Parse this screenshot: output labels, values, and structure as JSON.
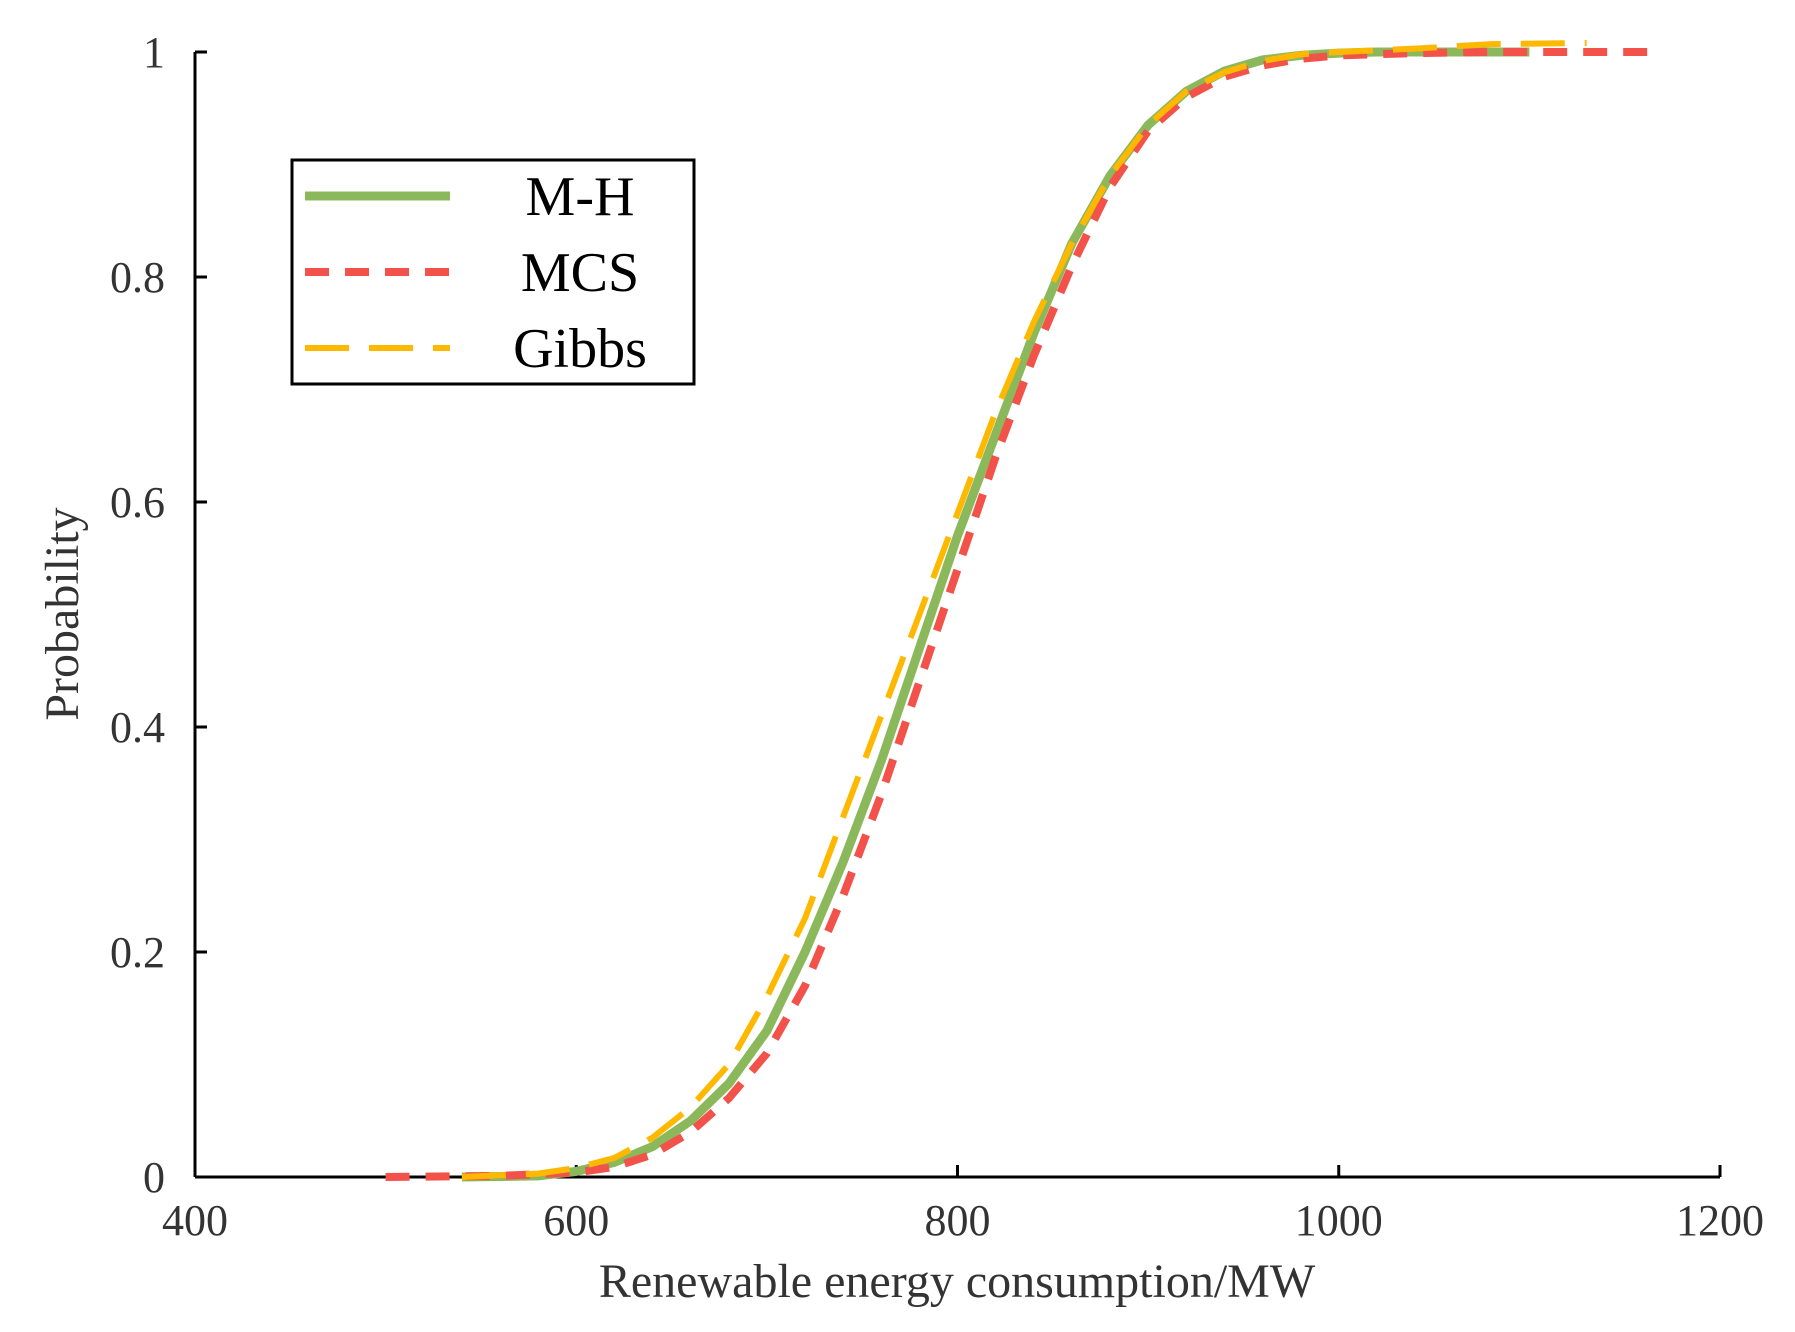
{
  "chart_data": {
    "type": "line",
    "title": "",
    "xlabel": "Renewable energy consumption/MW",
    "ylabel": "Probability",
    "xlim": [
      400,
      1200
    ],
    "ylim": [
      0,
      1
    ],
    "xticks": [
      400,
      600,
      800,
      1000,
      1200
    ],
    "yticks": [
      0,
      0.2,
      0.4,
      0.6,
      0.8,
      1
    ],
    "xtick_labels": [
      "400",
      "600",
      "800",
      "1000",
      "1200"
    ],
    "ytick_labels": [
      "0",
      "0.2",
      "0.4",
      "0.6",
      "0.8",
      "1"
    ],
    "grid": false,
    "legend_position": "upper-left",
    "series": [
      {
        "name": "M-H",
        "color": "#8cb85c",
        "style": "solid",
        "x": [
          540,
          580,
          600,
          620,
          640,
          660,
          680,
          700,
          720,
          740,
          760,
          780,
          800,
          820,
          840,
          860,
          880,
          900,
          920,
          940,
          960,
          980,
          1000,
          1020,
          1040,
          1060,
          1080,
          1100
        ],
        "y": [
          0,
          0.001,
          0.005,
          0.013,
          0.027,
          0.05,
          0.083,
          0.13,
          0.2,
          0.28,
          0.37,
          0.47,
          0.57,
          0.66,
          0.75,
          0.83,
          0.89,
          0.935,
          0.965,
          0.983,
          0.993,
          0.997,
          0.999,
          1,
          1,
          1,
          1,
          1
        ]
      },
      {
        "name": "MCS",
        "color": "#f2524a",
        "style": "dashed",
        "x": [
          500,
          560,
          600,
          620,
          640,
          660,
          680,
          700,
          720,
          740,
          760,
          780,
          800,
          820,
          840,
          860,
          880,
          900,
          920,
          940,
          960,
          980,
          1000,
          1040,
          1080,
          1120,
          1170
        ],
        "y": [
          0,
          0.001,
          0.004,
          0.009,
          0.02,
          0.04,
          0.07,
          0.11,
          0.17,
          0.25,
          0.34,
          0.44,
          0.54,
          0.64,
          0.73,
          0.81,
          0.88,
          0.93,
          0.96,
          0.978,
          0.988,
          0.994,
          0.997,
          0.999,
          1,
          1,
          1
        ]
      },
      {
        "name": "Gibbs",
        "color": "#ffb800",
        "style": "long-dash",
        "x": [
          540,
          580,
          600,
          620,
          640,
          660,
          680,
          700,
          720,
          740,
          760,
          780,
          800,
          820,
          840,
          860,
          880,
          900,
          920,
          940,
          960,
          980,
          1000,
          1040,
          1080,
          1130
        ],
        "y": [
          0,
          0.003,
          0.008,
          0.017,
          0.035,
          0.062,
          0.1,
          0.16,
          0.23,
          0.32,
          0.41,
          0.5,
          0.59,
          0.68,
          0.76,
          0.83,
          0.89,
          0.935,
          0.965,
          0.982,
          0.992,
          0.998,
          1,
          1.003,
          1.007,
          1.008
        ]
      }
    ]
  }
}
